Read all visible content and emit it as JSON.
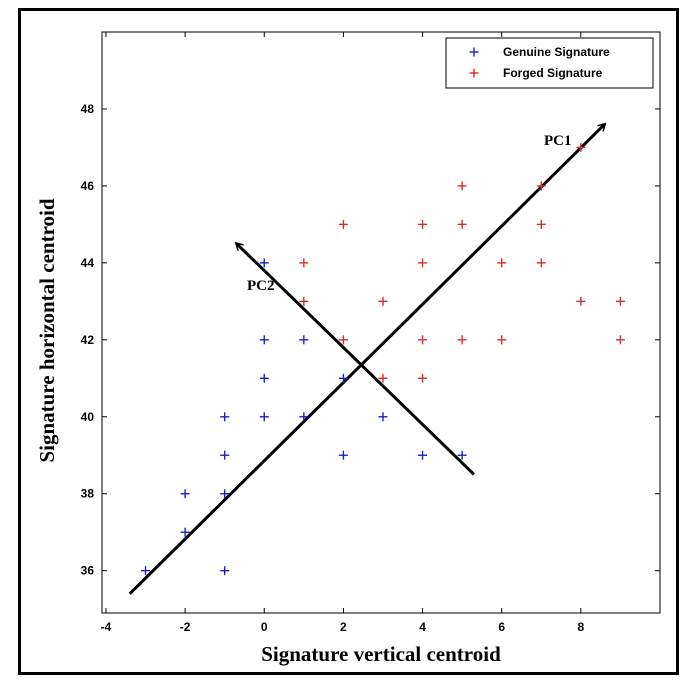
{
  "chart_data": {
    "type": "scatter",
    "xlabel": "Signature vertical centroid",
    "ylabel": "Signature horizontal centroid",
    "xlim": [
      -4.1,
      10
    ],
    "ylim": [
      34.9,
      50
    ],
    "xticks": [
      "-4",
      "-2",
      "0",
      "2",
      "4",
      "6",
      "8"
    ],
    "yticks": [
      "36",
      "38",
      "40",
      "42",
      "44",
      "46",
      "48"
    ],
    "grid": false,
    "legend_position": "top-right",
    "marker": "+",
    "series": [
      {
        "name": "Genuine Signature",
        "color": "#2020c8",
        "points": [
          [
            -3,
            36
          ],
          [
            -2,
            37
          ],
          [
            -2,
            38
          ],
          [
            -1,
            36
          ],
          [
            -1,
            38
          ],
          [
            -1,
            39
          ],
          [
            -1,
            40
          ],
          [
            0,
            40
          ],
          [
            0,
            41
          ],
          [
            0,
            42
          ],
          [
            0,
            44
          ],
          [
            1,
            40
          ],
          [
            1,
            42
          ],
          [
            2,
            39
          ],
          [
            2,
            41
          ],
          [
            3,
            40
          ],
          [
            4,
            39
          ],
          [
            5,
            39
          ]
        ]
      },
      {
        "name": "Forged Signature",
        "color": "#d03030",
        "points": [
          [
            1,
            43
          ],
          [
            1,
            44
          ],
          [
            2,
            42
          ],
          [
            2,
            45
          ],
          [
            3,
            41
          ],
          [
            3,
            43
          ],
          [
            4,
            41
          ],
          [
            4,
            42
          ],
          [
            4,
            44
          ],
          [
            4,
            45
          ],
          [
            5,
            42
          ],
          [
            5,
            45
          ],
          [
            5,
            46
          ],
          [
            6,
            42
          ],
          [
            6,
            44
          ],
          [
            7,
            44
          ],
          [
            7,
            45
          ],
          [
            7,
            46
          ],
          [
            8,
            43
          ],
          [
            8,
            47
          ],
          [
            9,
            42
          ],
          [
            9,
            43
          ]
        ]
      }
    ],
    "arrows": [
      {
        "label": "PC1",
        "from": [
          -3.4,
          35.4
        ],
        "to": [
          8.6,
          47.6
        ]
      },
      {
        "label": "PC2",
        "from": [
          5.3,
          38.5
        ],
        "to": [
          -0.7,
          44.5
        ]
      }
    ]
  }
}
